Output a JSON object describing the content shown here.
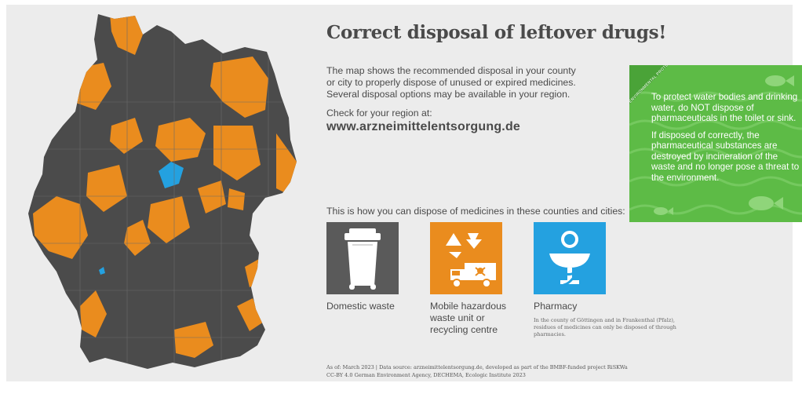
{
  "title": "Correct disposal of leftover drugs!",
  "intro": {
    "line1": "The map shows the recommended disposal in your county",
    "line2": "or city to properly dispose of unused or expired medicines.",
    "line3": "Several disposal options may be available in your region."
  },
  "check_label": "Check for your region at:",
  "url": "www.arzneimittelentsorgung.de",
  "how_label": "This is how you can dispose of medicines in these counties and cities:",
  "options": [
    {
      "label": "Domestic waste",
      "color": "#5a5a5a",
      "icon": "trash-bin-icon"
    },
    {
      "label": "Mobile hazardous waste unit or recycling centre",
      "color": "#ea8c1e",
      "icon": "recycling-truck-icon"
    },
    {
      "label": "Pharmacy",
      "color": "#24a1e0",
      "icon": "pharmacy-bowl-icon",
      "note": "In the county of Göttingen and in Frankenthal (Pfalz), residues of medicines can only be disposed of through pharmacies."
    }
  ],
  "green_box": {
    "badge": "ENVIRONMENTAL PROTECTION",
    "p1": "To protect water bodies and drinking water, do NOT dispose of pharmaceuticals in the toilet or sink.",
    "p2": "If disposed of correctly, the pharmaceutical substances are destroyed by incineration of the waste and no longer pose a threat to the environment.",
    "color": "#5dbb46"
  },
  "footer": {
    "line1": "As of: March 2023  |  Data source: arzneimittelentsorgung.de, developed as part of the BMBF-funded project RiSKWa",
    "line2": "CC-BY 4.0 German Environment Agency, DECHEMA, Ecologic Institute 2023"
  },
  "map_colors": {
    "domestic": "#4b4b4b",
    "mobile": "#ea8c1e",
    "pharmacy": "#24a1e0"
  }
}
